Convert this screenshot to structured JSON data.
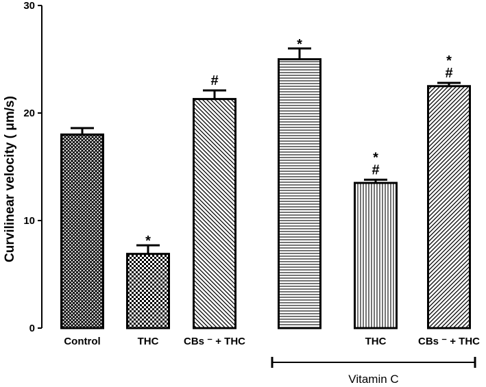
{
  "chart_data": {
    "type": "bar",
    "ylabel": "Curvilinear velocity ( μm/s)",
    "ylim": [
      0,
      30
    ],
    "yticks": [
      0,
      10,
      20,
      30
    ],
    "grid": false,
    "categories": [
      "Control",
      "THC",
      "CBs ⁻ + THC",
      "",
      "THC",
      "CBs ⁻ + THC"
    ],
    "values": [
      18.0,
      6.9,
      21.3,
      25.0,
      13.5,
      22.5
    ],
    "errors": [
      0.6,
      0.8,
      0.8,
      1.0,
      0.3,
      0.3
    ],
    "annotations": [
      "",
      "*",
      "#",
      "*",
      "*\n#",
      "*\n#"
    ],
    "patterns": [
      "crosshatch",
      "checker",
      "diagonal-back",
      "horizontal",
      "vertical",
      "diagonal-forward"
    ],
    "group": {
      "label": "Vitamin C",
      "from_index": 3,
      "to_index": 5
    }
  }
}
